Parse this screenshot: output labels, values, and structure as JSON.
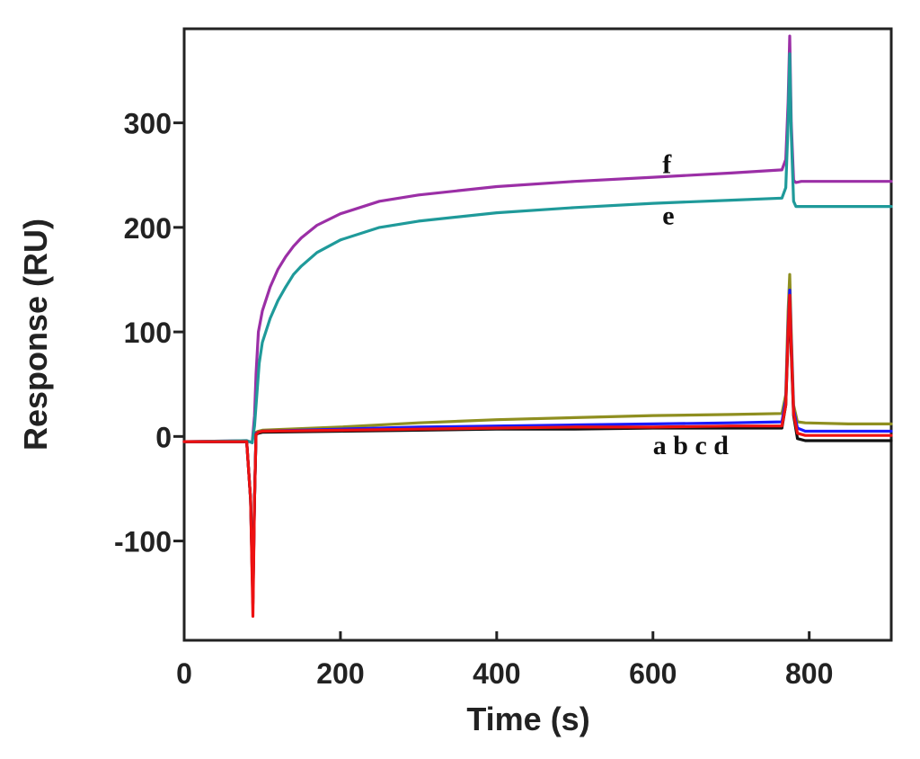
{
  "chart_data": {
    "type": "line",
    "title": "",
    "xlabel": "Time (s)",
    "ylabel": "Response (RU)",
    "xlim": [
      0,
      905
    ],
    "ylim": [
      -195,
      390
    ],
    "xticks": [
      0,
      200,
      400,
      600,
      800
    ],
    "yticks": [
      -100,
      0,
      100,
      200,
      300
    ],
    "xtick_labels": [
      "0",
      "200",
      "400",
      "600",
      "800"
    ],
    "ytick_labels": [
      "-100",
      "0",
      "100",
      "200",
      "300"
    ],
    "grid": false,
    "curve_labels": [
      {
        "text": "f",
        "x": 612,
        "y": 252
      },
      {
        "text": "e",
        "x": 612,
        "y": 203
      },
      {
        "text": "a b c d",
        "x": 600,
        "y": -17
      }
    ],
    "series": [
      {
        "name": "f",
        "color": "#9b2fa6",
        "x": [
          0,
          80,
          87,
          90,
          92,
          95,
          100,
          110,
          120,
          130,
          140,
          150,
          170,
          200,
          250,
          300,
          400,
          500,
          600,
          700,
          765,
          770,
          773,
          775,
          777,
          780,
          783,
          790,
          800,
          840,
          905
        ],
        "y": [
          -5,
          -4,
          -6,
          20,
          60,
          100,
          120,
          143,
          160,
          172,
          182,
          190,
          202,
          213,
          225,
          231,
          239,
          244,
          248,
          252,
          255,
          265,
          320,
          383,
          300,
          245,
          243,
          244,
          244,
          244,
          244
        ]
      },
      {
        "name": "e",
        "color": "#1f9a9a",
        "x": [
          0,
          80,
          87,
          90,
          93,
          96,
          100,
          110,
          120,
          130,
          140,
          150,
          170,
          200,
          250,
          300,
          400,
          500,
          600,
          700,
          765,
          770,
          773,
          775,
          777,
          780,
          783,
          790,
          800,
          840,
          905
        ],
        "y": [
          -5,
          -4,
          -6,
          10,
          40,
          70,
          90,
          113,
          130,
          143,
          155,
          163,
          176,
          188,
          200,
          206,
          214,
          219,
          223,
          226,
          228,
          238,
          300,
          366,
          290,
          225,
          220,
          220,
          220,
          220,
          220
        ]
      },
      {
        "name": "d",
        "color": "#8f8f20",
        "x": [
          0,
          80,
          85,
          88,
          90,
          92,
          95,
          100,
          200,
          300,
          400,
          500,
          600,
          700,
          765,
          770,
          773,
          775,
          777,
          780,
          785,
          795,
          850,
          905
        ],
        "y": [
          -5,
          -5,
          -60,
          -140,
          -60,
          4,
          5,
          6,
          9,
          13,
          16,
          18,
          20,
          21,
          22,
          40,
          120,
          155,
          100,
          30,
          14,
          13,
          12,
          12
        ]
      },
      {
        "name": "c",
        "color": "#1a1aff",
        "x": [
          0,
          80,
          85,
          88,
          90,
          92,
          95,
          100,
          200,
          300,
          400,
          500,
          600,
          700,
          765,
          770,
          773,
          775,
          777,
          780,
          785,
          795,
          850,
          905
        ],
        "y": [
          -5,
          -5,
          -60,
          -155,
          -60,
          3,
          4,
          5,
          7,
          9,
          10,
          11,
          12,
          13,
          14,
          35,
          105,
          140,
          90,
          25,
          8,
          5,
          5,
          5
        ]
      },
      {
        "name": "b",
        "color": "#111111",
        "x": [
          0,
          80,
          85,
          88,
          90,
          92,
          95,
          100,
          200,
          300,
          400,
          500,
          600,
          700,
          765,
          770,
          773,
          775,
          777,
          780,
          785,
          795,
          850,
          905
        ],
        "y": [
          -5,
          -5,
          -60,
          -160,
          -60,
          2,
          3,
          4,
          5,
          6,
          7,
          7,
          8,
          8,
          8,
          30,
          95,
          130,
          80,
          20,
          -2,
          -4,
          -4,
          -4
        ]
      },
      {
        "name": "a",
        "color": "#ee1111",
        "x": [
          0,
          80,
          85,
          88,
          90,
          92,
          95,
          100,
          200,
          300,
          400,
          500,
          600,
          700,
          765,
          770,
          773,
          775,
          777,
          780,
          785,
          795,
          850,
          905
        ],
        "y": [
          -5,
          -5,
          -60,
          -172,
          -60,
          2,
          4,
          5,
          6,
          7,
          8,
          9,
          9,
          10,
          10,
          30,
          100,
          135,
          85,
          22,
          3,
          1,
          1,
          1
        ]
      }
    ]
  }
}
